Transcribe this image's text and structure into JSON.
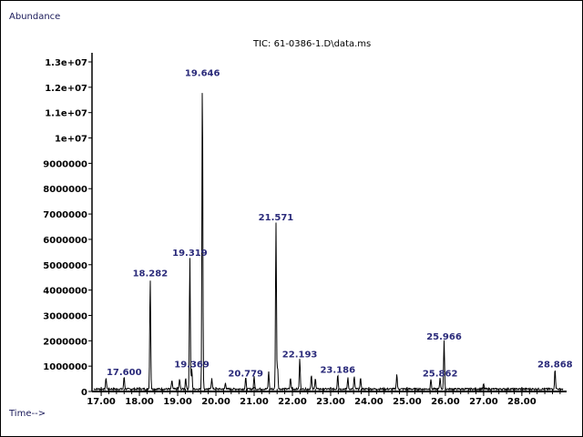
{
  "chart_data": {
    "type": "line",
    "title": "TIC: 61-0386-1.D\\data.ms",
    "ylabel": "Abundance",
    "xlabel": "Time-->",
    "xlim": [
      16.76,
      29.17
    ],
    "ylim": [
      0,
      13000000
    ],
    "grid": false,
    "x_ticks": [
      "17.00",
      "18.00",
      "19.00",
      "20.00",
      "21.00",
      "22.00",
      "23.00",
      "24.00",
      "25.00",
      "26.00",
      "27.00",
      "28.00"
    ],
    "x_tick_values": [
      17,
      18,
      19,
      20,
      21,
      22,
      23,
      24,
      25,
      26,
      27,
      28
    ],
    "y_ticks": [
      "0",
      "1000000",
      "2000000",
      "3000000",
      "4000000",
      "5000000",
      "6000000",
      "7000000",
      "8000000",
      "9000000",
      "1e+07",
      "1.1e+07",
      "1.2e+07",
      "1.3e+07"
    ],
    "y_tick_values": [
      0,
      1000000,
      2000000,
      3000000,
      4000000,
      5000000,
      6000000,
      7000000,
      8000000,
      9000000,
      10000000,
      11000000,
      12000000,
      13000000
    ],
    "peaks": [
      {
        "rt": 17.127,
        "height": 450000,
        "label": ""
      },
      {
        "rt": 17.6,
        "height": 500000,
        "label": "17.600"
      },
      {
        "rt": 18.282,
        "height": 4400000,
        "label": "18.282"
      },
      {
        "rt": 18.85,
        "height": 350000,
        "label": ""
      },
      {
        "rt": 19.05,
        "height": 400000,
        "label": ""
      },
      {
        "rt": 19.21,
        "height": 450000,
        "label": ""
      },
      {
        "rt": 19.319,
        "height": 5200000,
        "label": "19.319"
      },
      {
        "rt": 19.369,
        "height": 800000,
        "label": "19.369"
      },
      {
        "rt": 19.646,
        "height": 12300000,
        "label": "19.646"
      },
      {
        "rt": 19.892,
        "height": 450000,
        "label": ""
      },
      {
        "rt": 20.25,
        "height": 250000,
        "label": ""
      },
      {
        "rt": 20.779,
        "height": 450000,
        "label": "20.779"
      },
      {
        "rt": 21.0,
        "height": 500000,
        "label": ""
      },
      {
        "rt": 21.38,
        "height": 700000,
        "label": ""
      },
      {
        "rt": 21.571,
        "height": 6600000,
        "label": "21.571"
      },
      {
        "rt": 21.613,
        "height": 900000,
        "label": ""
      },
      {
        "rt": 21.95,
        "height": 450000,
        "label": ""
      },
      {
        "rt": 22.193,
        "height": 1200000,
        "label": "22.193"
      },
      {
        "rt": 22.496,
        "height": 550000,
        "label": ""
      },
      {
        "rt": 22.6,
        "height": 450000,
        "label": ""
      },
      {
        "rt": 23.186,
        "height": 600000,
        "label": "23.186"
      },
      {
        "rt": 23.45,
        "height": 450000,
        "label": ""
      },
      {
        "rt": 23.617,
        "height": 500000,
        "label": ""
      },
      {
        "rt": 23.784,
        "height": 450000,
        "label": ""
      },
      {
        "rt": 24.73,
        "height": 600000,
        "label": ""
      },
      {
        "rt": 25.62,
        "height": 400000,
        "label": ""
      },
      {
        "rt": 25.862,
        "height": 450000,
        "label": "25.862"
      },
      {
        "rt": 25.966,
        "height": 1900000,
        "label": "25.966"
      },
      {
        "rt": 27.0,
        "height": 200000,
        "label": ""
      },
      {
        "rt": 28.868,
        "height": 800000,
        "label": "28.868"
      }
    ],
    "line_color": "#000000",
    "label_color": "#2a2a7a"
  }
}
